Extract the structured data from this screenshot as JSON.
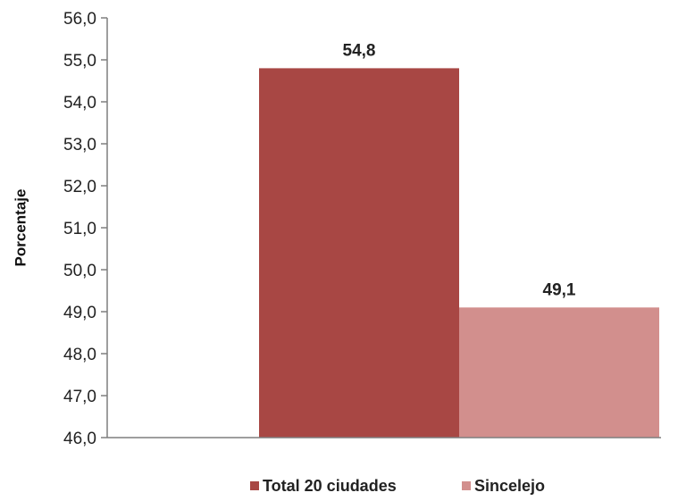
{
  "chart_data": {
    "type": "bar",
    "categories": [
      "Total 20 ciudades",
      "Sincelejo"
    ],
    "values": [
      54.8,
      49.1
    ],
    "value_labels": [
      "54,8",
      "49,1"
    ],
    "ylabel": "Porcentaje",
    "ylim": [
      46.0,
      56.0
    ],
    "yticks": [
      "46,0",
      "47,0",
      "48,0",
      "49,0",
      "50,0",
      "51,0",
      "52,0",
      "53,0",
      "54,0",
      "55,0",
      "56,0"
    ],
    "colors": [
      "#a84744",
      "#d28f8d"
    ],
    "legend": [
      "Total 20 ciudades",
      "Sincelejo"
    ],
    "legend_position": "bottom",
    "grid": false
  }
}
